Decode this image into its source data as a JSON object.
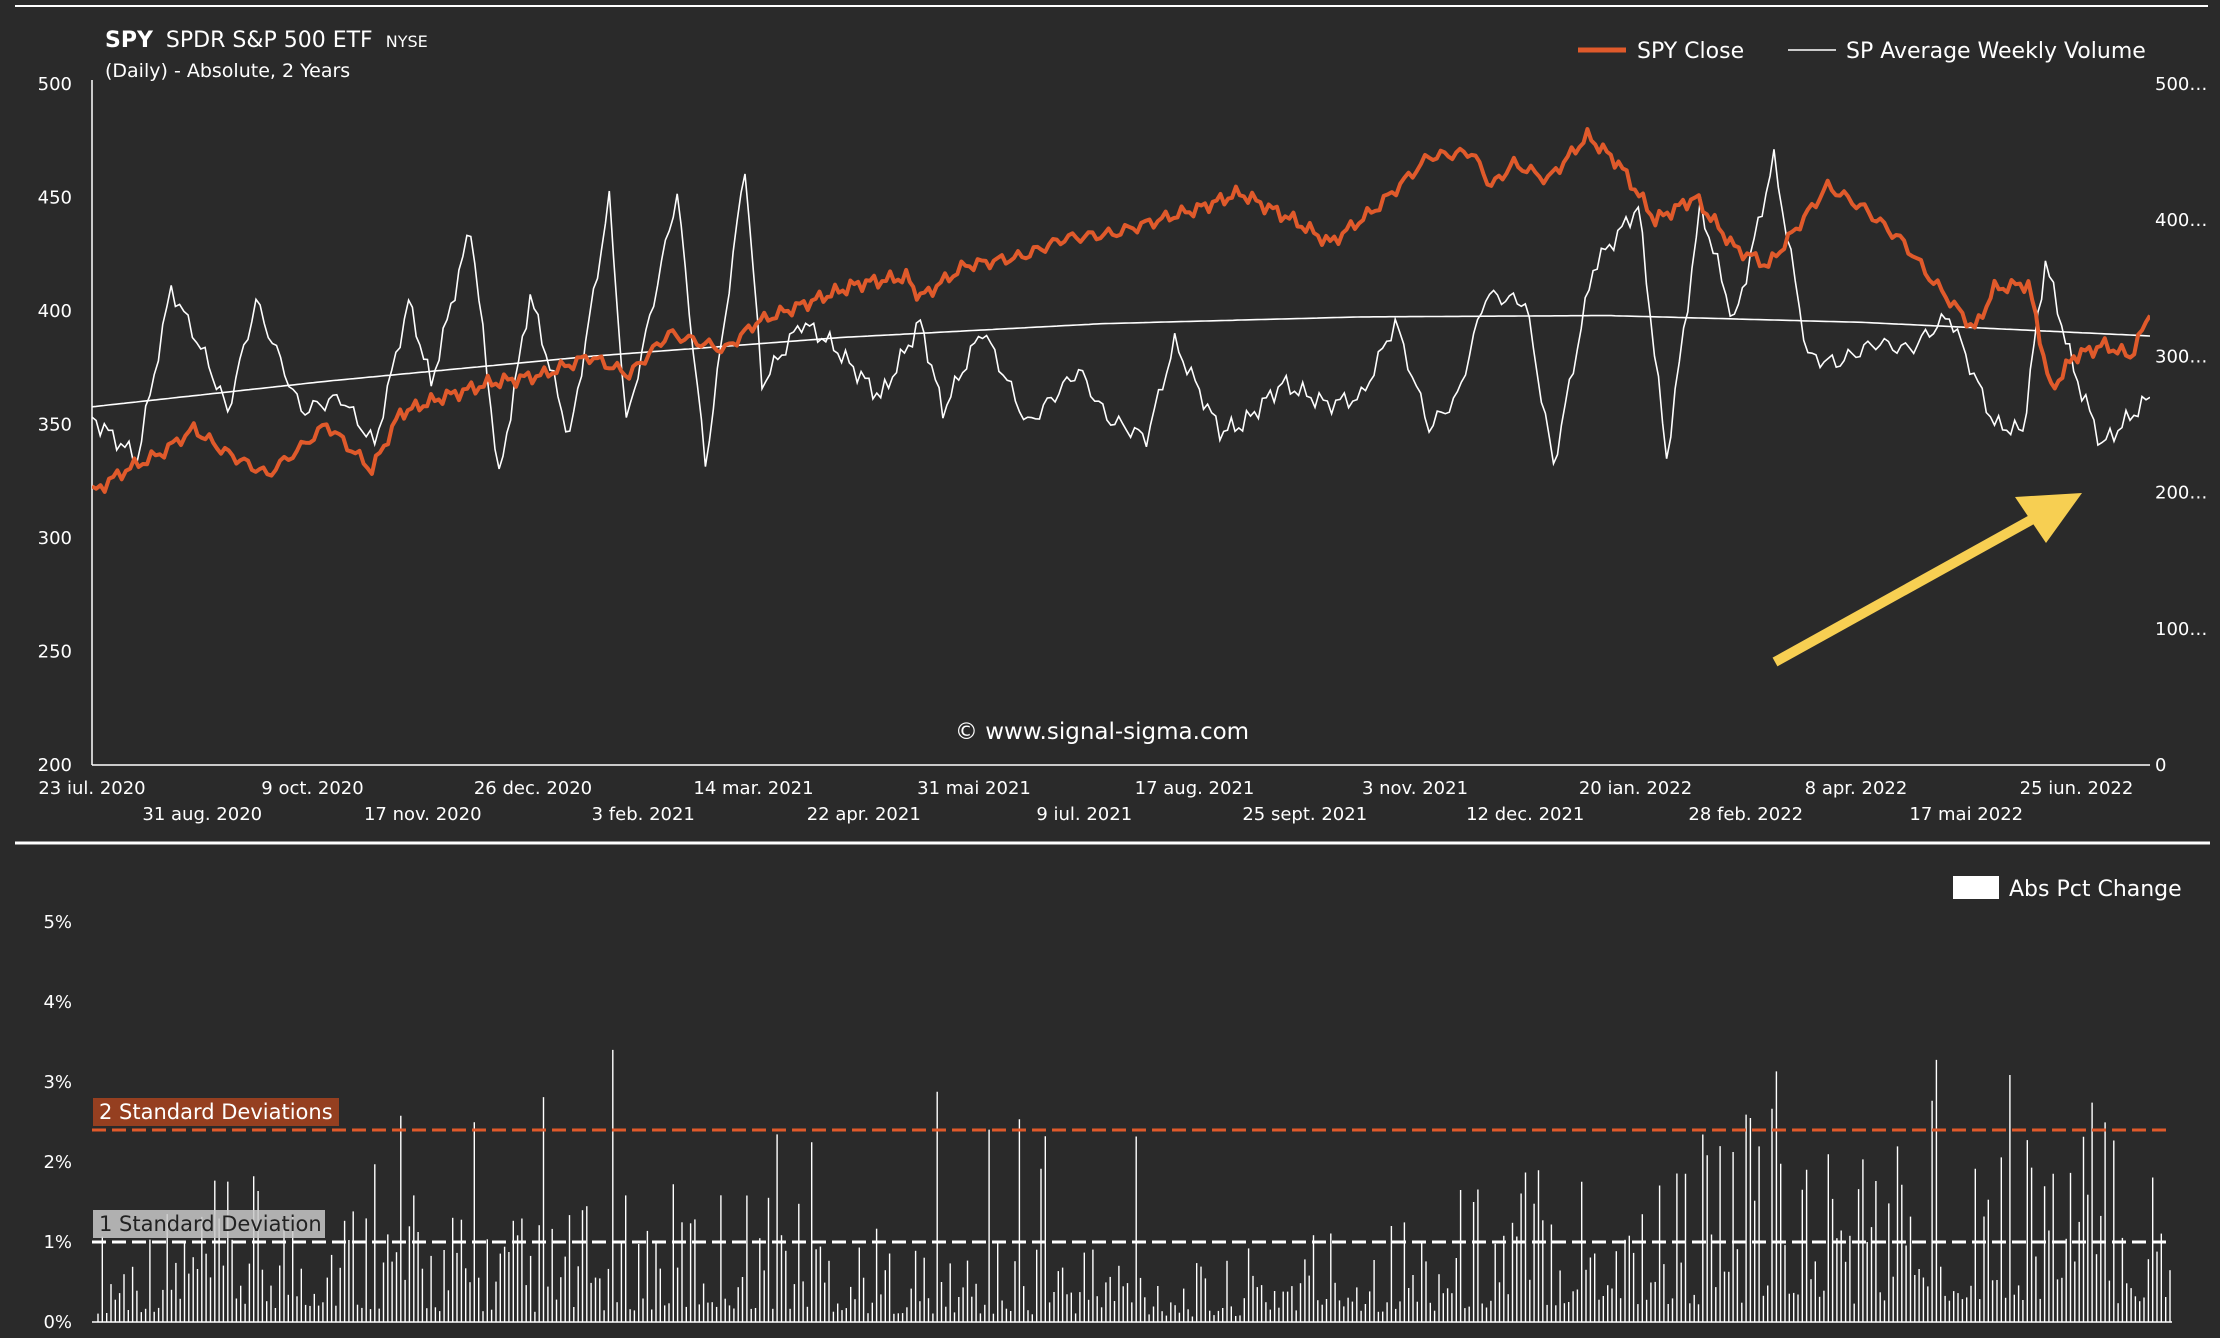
{
  "header": {
    "ticker": "SPY",
    "name": "SPDR S&P 500 ETF",
    "exchange": "NYSE",
    "subtitle": "(Daily) - Absolute, 2 Years"
  },
  "watermark": "© www.signal-sigma.com",
  "colors": {
    "background": "#2a2a2a",
    "price": "#e05a2b",
    "volume": "#ffffff",
    "two_sd": "#e05a2b",
    "one_sd": "#ffffff",
    "arrow": "#f7cf52",
    "two_sd_label_bg": "#a8431f",
    "one_sd_label_bg": "#c8c8c8"
  },
  "chart_data": [
    {
      "type": "line",
      "legend_position": "top-right",
      "y_ticks_left": [
        "500",
        "450",
        "400",
        "350",
        "300",
        "250",
        "200"
      ],
      "y_ticks_right": [
        "500…",
        "400…",
        "300…",
        "200…",
        "100…",
        "0"
      ],
      "ylim_left": [
        200,
        500
      ],
      "ylim_right": [
        0,
        500
      ],
      "x_ticks_row1": [
        "23 iul. 2020",
        "9 oct. 2020",
        "26 dec. 2020",
        "14 mar. 2021",
        "31 mai 2021",
        "17 aug. 2021",
        "3 nov. 2021",
        "20 ian. 2022",
        "8 apr. 2022",
        "25 iun. 2022"
      ],
      "x_ticks_row2": [
        "31 aug. 2020",
        "17 nov. 2020",
        "3 feb. 2021",
        "22 apr. 2021",
        "9 iul. 2021",
        "25 sept. 2021",
        "12 dec. 2021",
        "28 feb. 2022",
        "17 mai 2022"
      ],
      "x_tick_dates": [
        "2020-07-23",
        "2020-08-31",
        "2020-10-09",
        "2020-11-17",
        "2020-12-26",
        "2021-02-03",
        "2021-03-14",
        "2021-04-22",
        "2021-05-31",
        "2021-07-09",
        "2021-08-17",
        "2021-09-25",
        "2021-11-03",
        "2021-12-12",
        "2022-01-20",
        "2022-02-28",
        "2022-04-08",
        "2022-05-17",
        "2022-06-25"
      ],
      "series": [
        {
          "name": "SPY Close",
          "x": [
            "2020-07-23",
            "2020-08-04",
            "2020-08-16",
            "2020-08-28",
            "2020-09-08",
            "2020-09-23",
            "2020-10-05",
            "2020-10-14",
            "2020-10-30",
            "2020-11-09",
            "2020-11-24",
            "2020-12-10",
            "2020-12-30",
            "2021-01-15",
            "2021-01-29",
            "2021-02-12",
            "2021-03-04",
            "2021-03-15",
            "2021-04-05",
            "2021-04-20",
            "2021-05-07",
            "2021-05-12",
            "2021-05-28",
            "2021-06-17",
            "2021-07-02",
            "2021-07-19",
            "2021-08-04",
            "2021-08-18",
            "2021-09-02",
            "2021-09-21",
            "2021-10-04",
            "2021-10-20",
            "2021-11-08",
            "2021-11-23",
            "2021-11-30",
            "2021-12-08",
            "2021-12-20",
            "2022-01-03",
            "2022-01-14",
            "2022-01-27",
            "2022-02-10",
            "2022-02-24",
            "2022-03-08",
            "2022-03-29",
            "2022-04-11",
            "2022-04-25",
            "2022-05-04",
            "2022-05-20",
            "2022-05-27",
            "2022-06-08",
            "2022-06-16",
            "2022-06-24",
            "2022-07-05",
            "2022-07-14",
            "2022-07-21"
          ],
          "values": [
            320,
            330,
            337,
            348,
            338,
            328,
            340,
            350,
            330,
            355,
            362,
            368,
            372,
            380,
            372,
            390,
            383,
            395,
            405,
            412,
            415,
            406,
            420,
            424,
            432,
            434,
            440,
            445,
            452,
            440,
            430,
            445,
            468,
            470,
            455,
            465,
            458,
            477,
            465,
            440,
            450,
            428,
            420,
            455,
            445,
            430,
            415,
            392,
            410,
            412,
            365,
            380,
            385,
            380,
            398
          ]
        },
        {
          "name": "SP Average Weekly Volume",
          "x": [
            "2020-07-23",
            "2020-08-08",
            "2020-08-20",
            "2020-09-01",
            "2020-09-09",
            "2020-09-19",
            "2020-10-05",
            "2020-10-19",
            "2020-10-31",
            "2020-11-12",
            "2020-11-20",
            "2020-12-04",
            "2020-12-14",
            "2020-12-25",
            "2021-01-08",
            "2021-01-22",
            "2021-01-28",
            "2021-02-15",
            "2021-02-25",
            "2021-03-11",
            "2021-03-17",
            "2021-03-31",
            "2021-04-10",
            "2021-04-28",
            "2021-05-12",
            "2021-05-20",
            "2021-06-03",
            "2021-06-19",
            "2021-07-07",
            "2021-07-17",
            "2021-07-31",
            "2021-08-10",
            "2021-08-26",
            "2021-09-03",
            "2021-09-17",
            "2021-10-03",
            "2021-10-15",
            "2021-10-27",
            "2021-11-08",
            "2021-11-18",
            "2021-11-28",
            "2021-12-12",
            "2021-12-22",
            "2022-01-05",
            "2022-01-21",
            "2022-01-31",
            "2022-02-12",
            "2022-02-24",
            "2022-03-10",
            "2022-03-22",
            "2022-04-01",
            "2022-04-15",
            "2022-04-27",
            "2022-05-11",
            "2022-05-27",
            "2022-06-06",
            "2022-06-14",
            "2022-06-24",
            "2022-07-04",
            "2022-07-21"
          ],
          "values": [
            255,
            225,
            350,
            300,
            260,
            340,
            260,
            270,
            235,
            340,
            280,
            395,
            210,
            345,
            240,
            415,
            250,
            420,
            220,
            440,
            280,
            325,
            310,
            270,
            325,
            260,
            320,
            250,
            290,
            255,
            240,
            310,
            245,
            250,
            280,
            265,
            270,
            325,
            248,
            270,
            345,
            340,
            220,
            365,
            410,
            225,
            410,
            325,
            445,
            300,
            295,
            310,
            305,
            330,
            250,
            245,
            370,
            290,
            235,
            270
          ]
        },
        {
          "name": "",
          "x": [
            "2020-07-23",
            "2020-10-15",
            "2021-01-15",
            "2021-04-15",
            "2021-07-15",
            "2021-10-15",
            "2022-01-10",
            "2022-04-10",
            "2022-07-21"
          ],
          "values": [
            263,
            282,
            300,
            314,
            324,
            329,
            330,
            325,
            315
          ]
        }
      ]
    },
    {
      "type": "bar",
      "series_name": "Abs Pct Change",
      "y_ticks": [
        "5%",
        "4%",
        "3%",
        "2%",
        "1%",
        "0%"
      ],
      "ylim": [
        0,
        5
      ],
      "thresholds": [
        {
          "label": "2 Standard Deviations",
          "value": 2.4
        },
        {
          "label": "1 Standard Deviation",
          "value": 1.0
        }
      ],
      "x": [
        "2020-07-23",
        "2020-08-31",
        "2020-10-09",
        "2020-11-17",
        "2020-12-26",
        "2021-02-03",
        "2021-03-14",
        "2021-04-22",
        "2021-05-31",
        "2021-07-09",
        "2021-08-17",
        "2021-09-25",
        "2021-11-03",
        "2021-12-12",
        "2022-01-20",
        "2022-02-28",
        "2022-04-08",
        "2022-05-17",
        "2022-06-25",
        "2022-07-21"
      ],
      "values": [
        0.7,
        1.0,
        1.2,
        0.9,
        0.8,
        1.0,
        1.1,
        0.7,
        0.6,
        0.7,
        0.4,
        0.8,
        0.9,
        1.4,
        1.3,
        1.6,
        1.5,
        1.9,
        1.7,
        1.2
      ]
    }
  ]
}
